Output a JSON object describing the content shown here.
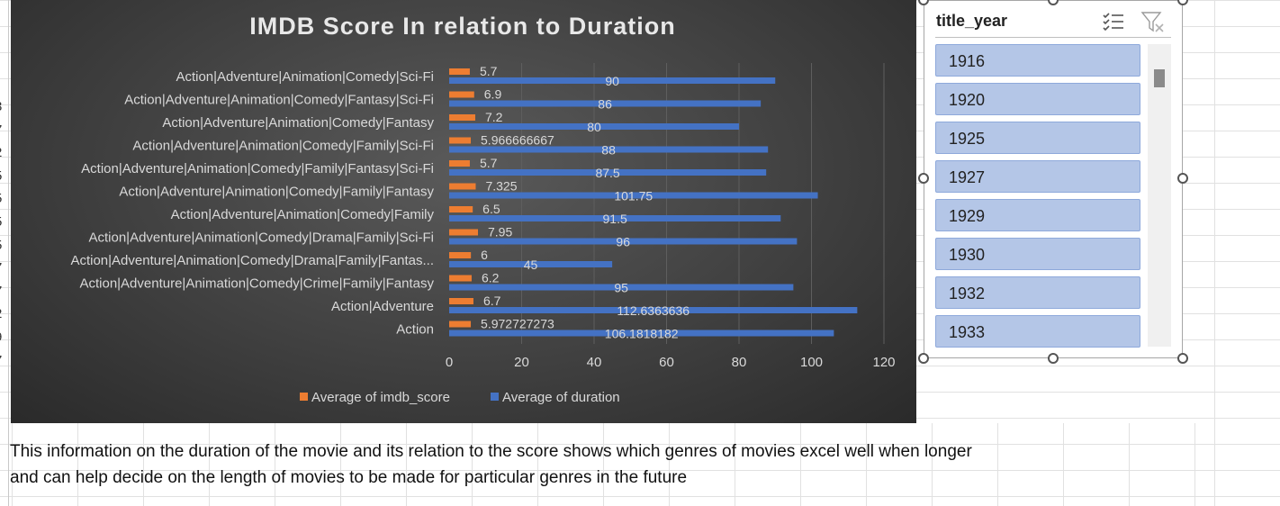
{
  "chart_data": {
    "type": "bar",
    "orientation": "horizontal",
    "title": "IMDB Score In relation to Duration",
    "categories": [
      "Action|Adventure|Animation|Comedy|Sci-Fi",
      "Action|Adventure|Animation|Comedy|Fantasy|Sci-Fi",
      "Action|Adventure|Animation|Comedy|Fantasy",
      "Action|Adventure|Animation|Comedy|Family|Sci-Fi",
      "Action|Adventure|Animation|Comedy|Family|Fantasy|Sci-Fi",
      "Action|Adventure|Animation|Comedy|Family|Fantasy",
      "Action|Adventure|Animation|Comedy|Family",
      "Action|Adventure|Animation|Comedy|Drama|Family|Sci-Fi",
      "Action|Adventure|Animation|Comedy|Drama|Family|Fantas...",
      "Action|Adventure|Animation|Comedy|Crime|Family|Fantasy",
      "Action|Adventure",
      "Action"
    ],
    "series": [
      {
        "name": "Average of imdb_score",
        "color": "#ed7d31",
        "values": [
          5.7,
          6.9,
          7.2,
          5.966666667,
          5.7,
          7.325,
          6.5,
          7.95,
          6,
          6.2,
          6.7,
          5.972727273
        ],
        "labels": [
          "5.7",
          "6.9",
          "7.2",
          "5.966666667",
          "5.7",
          "7.325",
          "6.5",
          "7.95",
          "6",
          "6.2",
          "6.7",
          "5.972727273"
        ]
      },
      {
        "name": "Average of duration",
        "color": "#4472c4",
        "values": [
          90,
          86,
          80,
          88,
          87.5,
          101.75,
          91.5,
          96,
          45,
          95,
          112.6363636,
          106.1818182
        ],
        "labels": [
          "90",
          "86",
          "80",
          "88",
          "87.5",
          "101.75",
          "91.5",
          "96",
          "45",
          "95",
          "112.6363636",
          "106.1818182"
        ]
      }
    ],
    "xlim": [
      0,
      120
    ],
    "xticks": [
      "0",
      "20",
      "40",
      "60",
      "80",
      "100",
      "120"
    ],
    "grid": true,
    "legend_position": "bottom",
    "background": "#404040"
  },
  "slicer": {
    "title": "title_year",
    "items": [
      "1916",
      "1920",
      "1925",
      "1927",
      "1929",
      "1930",
      "1932",
      "1933"
    ],
    "multi_select_icon": "multi-select-icon",
    "clear_filter_icon": "clear-filter-icon"
  },
  "note": {
    "line1": "This information on the duration of the movie and its relation to the score shows which genres of movies excel well when longer",
    "line2": "and can help decide on the length of movies to be made for particular genres in the future"
  },
  "row_header_glyphs": [
    "3",
    "7",
    "2",
    "5",
    "5",
    "5",
    "5",
    "7",
    "7",
    "2",
    "9",
    "7"
  ]
}
